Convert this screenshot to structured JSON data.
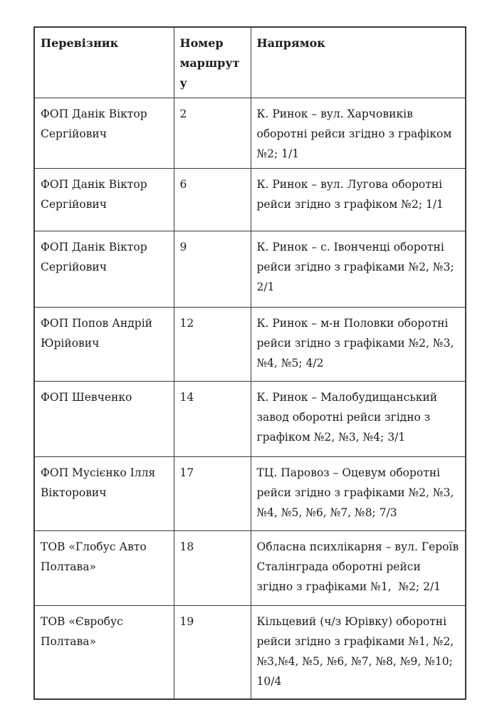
{
  "page": {
    "background": "#ffffff",
    "text_color": "#1c1c1c",
    "border_color": "#3a3a3a"
  },
  "table": {
    "headers": {
      "carrier": "Перевізник",
      "route_number": "Номер маршруту",
      "direction": "Напрямок"
    },
    "rows": [
      {
        "carrier": "ФОП Данік Віктор Сергійович",
        "route": "2",
        "direction": "К. Ринок – вул. Харчовиків оборотні рейси згідно з графіком №2; 1/1"
      },
      {
        "carrier": "ФОП Данік Віктор Сергійович",
        "route": "6",
        "direction": "К. Ринок – вул. Лугова оборотні рейси згідно з графіком №2; 1/1"
      },
      {
        "carrier": "ФОП Данік Віктор Сергійович",
        "route": "9",
        "direction": "К. Ринок – с. Івонченці оборотні рейси згідно з графіками №2, №3; 2/1"
      },
      {
        "carrier": "ФОП Попов Андрій Юрійович",
        "route": "12",
        "direction": "К. Ринок – м-н Половки оборотні рейси згідно з графіками №2, №3, №4, №5; 4/2"
      },
      {
        "carrier": "ФОП Шевченко",
        "route": "14",
        "direction": "К. Ринок – Малобудищанський завод оборотні рейси згідно з графіком №2, №3, №4; 3/1"
      },
      {
        "carrier": "ФОП Мусієнко Ілля Вікторович",
        "route": "17",
        "direction": "ТЦ. Паровоз – Оцевум оборотні рейси згідно з графіками №2, №3, №4, №5, №6, №7, №8; 7/3"
      },
      {
        "carrier": "ТОВ «Глобус Авто Полтава»",
        "route": "18",
        "direction": "Обласна психлікарня – вул. Героїв Сталінграда оборотні рейси згідно з графіками №1,  №2; 2/1"
      },
      {
        "carrier": "ТОВ «Євробус Полтава»",
        "route": "19",
        "direction": "Кільцевий (ч/з Юрівку) оборотні рейси згідно з графіками №1, №2, №3,№4, №5, №6, №7, №8, №9, №10; 10/4"
      }
    ]
  }
}
